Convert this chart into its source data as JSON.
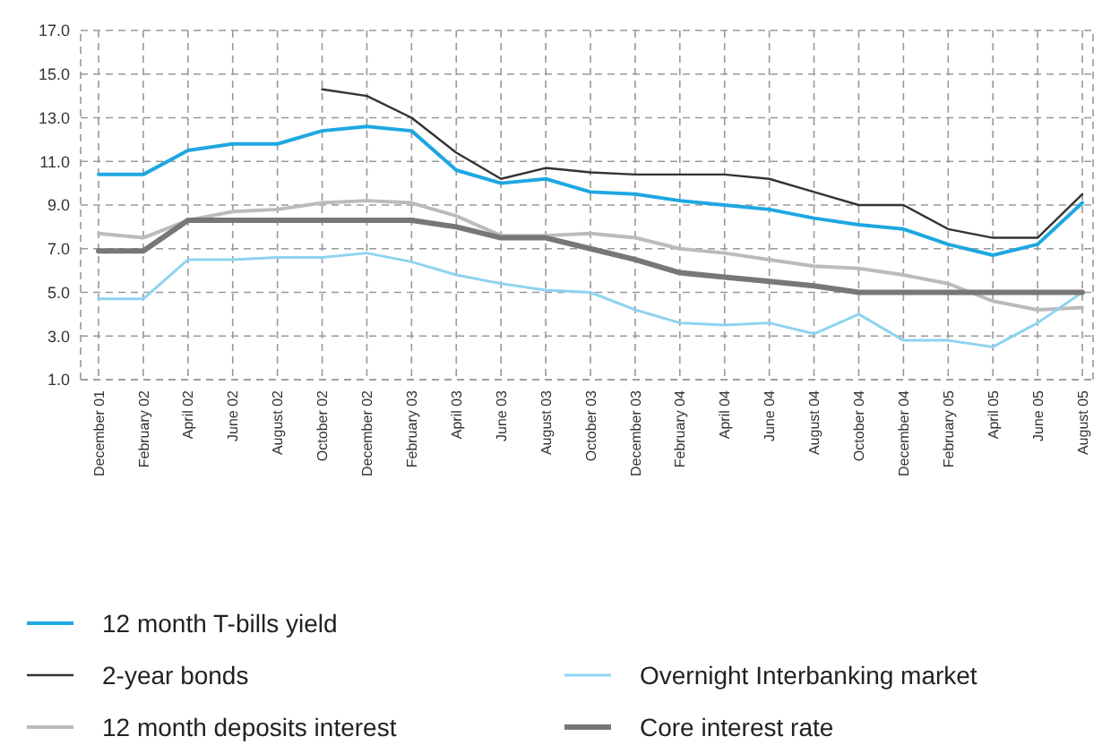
{
  "chart_data": {
    "type": "line",
    "categories": [
      "December 01",
      "February 02",
      "April 02",
      "June 02",
      "August 02",
      "October 02",
      "December 02",
      "February 03",
      "April 03",
      "June 03",
      "August 03",
      "October 03",
      "December 03",
      "February 04",
      "April 04",
      "June 04",
      "August 04",
      "October 04",
      "December 04",
      "February 05",
      "April 05",
      "June 05",
      "August 05"
    ],
    "series": [
      {
        "name": "12 month T-bills yield",
        "color": "#1ea7e1",
        "values": [
          10.4,
          10.4,
          11.5,
          11.8,
          11.8,
          12.4,
          12.6,
          12.4,
          10.6,
          10.0,
          10.2,
          9.6,
          9.5,
          9.2,
          9.0,
          8.8,
          8.4,
          8.1,
          7.9,
          7.2,
          6.7,
          7.2,
          9.1
        ]
      },
      {
        "name": "2-year bonds",
        "color": "#333333",
        "values": [
          null,
          null,
          null,
          null,
          null,
          14.3,
          14.0,
          13.0,
          11.4,
          10.2,
          10.7,
          10.5,
          10.4,
          10.4,
          10.4,
          10.2,
          9.6,
          9.0,
          9.0,
          7.9,
          7.5,
          7.5,
          9.5
        ]
      },
      {
        "name": "12 month deposits interest",
        "color": "#bbbbbb",
        "values": [
          7.7,
          7.5,
          8.3,
          8.7,
          8.8,
          9.1,
          9.2,
          9.1,
          8.5,
          7.6,
          7.6,
          7.7,
          7.5,
          7.0,
          6.8,
          6.5,
          6.2,
          6.1,
          5.8,
          5.4,
          4.6,
          4.2,
          4.3
        ]
      },
      {
        "name": "Overnight Interbanking market",
        "color": "#8fd3f0",
        "values": [
          4.7,
          4.7,
          6.5,
          6.5,
          6.6,
          6.6,
          6.8,
          6.4,
          5.8,
          5.4,
          5.1,
          5.0,
          4.2,
          3.6,
          3.5,
          3.6,
          3.1,
          4.0,
          2.8,
          2.8,
          2.5,
          3.6,
          5.0
        ]
      },
      {
        "name": "Core interest rate",
        "color": "#777777",
        "values": [
          6.9,
          6.9,
          8.3,
          8.3,
          8.3,
          8.3,
          8.3,
          8.3,
          8.0,
          7.5,
          7.5,
          7.0,
          6.5,
          5.9,
          5.7,
          5.5,
          5.3,
          5.0,
          5.0,
          5.0,
          5.0,
          5.0,
          5.0
        ]
      }
    ],
    "ylim": [
      1,
      17
    ],
    "yticks": [
      {
        "value": 1,
        "label": "1.0"
      },
      {
        "value": 3,
        "label": "3.0"
      },
      {
        "value": 5,
        "label": "5.0"
      },
      {
        "value": 7,
        "label": "7.0"
      },
      {
        "value": 9,
        "label": "9.0"
      },
      {
        "value": 11,
        "label": "11.0"
      },
      {
        "value": 13,
        "label": "13.0"
      },
      {
        "value": 15,
        "label": "15.0"
      },
      {
        "value": 17,
        "label": "17.0"
      }
    ],
    "grid": true,
    "legend": "bottom",
    "marker": "none",
    "line_style": "solid"
  }
}
